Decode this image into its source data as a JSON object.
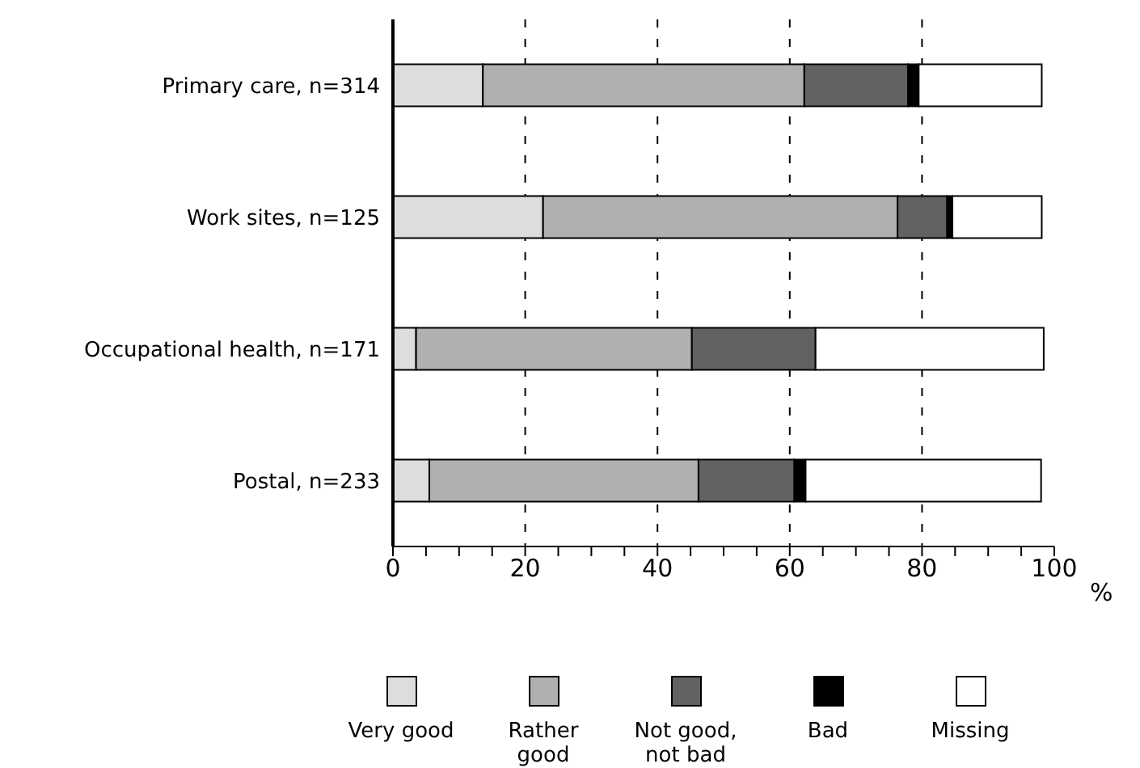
{
  "chart_data": {
    "type": "bar",
    "orientation": "horizontal",
    "stacked": true,
    "xlabel": "%",
    "categories": [
      "Primary care, n=314",
      "Work sites, n=125",
      "Occupational health, n=171",
      "Postal, n=233"
    ],
    "series": [
      {
        "name": "Very good",
        "color": "#dddddd",
        "values": [
          13.6,
          22.7,
          3.5,
          5.5
        ]
      },
      {
        "name": "Rather good",
        "color": "#b0b0b0",
        "values": [
          48.6,
          53.6,
          41.7,
          40.7
        ]
      },
      {
        "name": "Not good, not bad",
        "color": "#626262",
        "values": [
          15.7,
          7.5,
          18.7,
          14.5
        ]
      },
      {
        "name": "Bad",
        "color": "#000000",
        "values": [
          1.6,
          0.8,
          0,
          1.7
        ]
      },
      {
        "name": "Missing",
        "color": "#ffffff",
        "values": [
          18.6,
          13.5,
          34.5,
          35.6
        ]
      }
    ],
    "xlim": [
      0,
      100
    ],
    "xticks": [
      0,
      {
        "value": 5,
        "label": null
      },
      {
        "value": 10,
        "label": null
      },
      {
        "value": 15,
        "label": null
      },
      20,
      {
        "value": 25,
        "label": null
      },
      {
        "value": 30,
        "label": null
      },
      {
        "value": 35,
        "label": null
      },
      40,
      {
        "value": 45,
        "label": null
      },
      {
        "value": 50,
        "label": null
      },
      {
        "value": 55,
        "label": null
      },
      60,
      {
        "value": 65,
        "label": null
      },
      {
        "value": 70,
        "label": null
      },
      {
        "value": 75,
        "label": null
      },
      80,
      {
        "value": 85,
        "label": null
      },
      {
        "value": 90,
        "label": null
      },
      {
        "value": 95,
        "label": null
      },
      100
    ],
    "grid": "x",
    "legend": "bottom"
  }
}
